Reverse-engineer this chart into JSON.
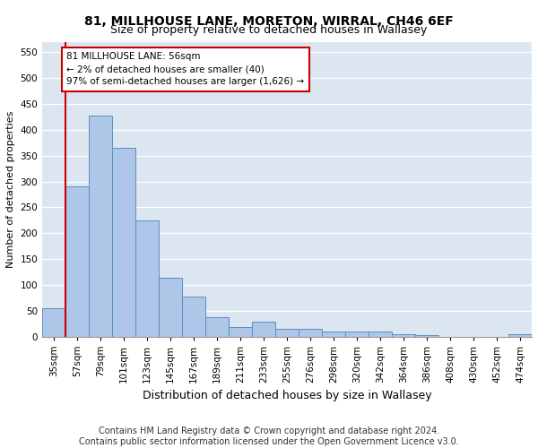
{
  "title": "81, MILLHOUSE LANE, MORETON, WIRRAL, CH46 6EF",
  "subtitle": "Size of property relative to detached houses in Wallasey",
  "xlabel": "Distribution of detached houses by size in Wallasey",
  "ylabel": "Number of detached properties",
  "categories": [
    "35sqm",
    "57sqm",
    "79sqm",
    "101sqm",
    "123sqm",
    "145sqm",
    "167sqm",
    "189sqm",
    "211sqm",
    "233sqm",
    "255sqm",
    "276sqm",
    "298sqm",
    "320sqm",
    "342sqm",
    "364sqm",
    "386sqm",
    "408sqm",
    "430sqm",
    "452sqm",
    "474sqm"
  ],
  "values": [
    55,
    290,
    428,
    365,
    224,
    113,
    77,
    38,
    18,
    28,
    15,
    14,
    10,
    10,
    10,
    5,
    3,
    0,
    0,
    0,
    5
  ],
  "bar_color": "#aec6e8",
  "bar_edge_color": "#5a8fc2",
  "bar_edge_width": 0.7,
  "vline_color": "#cc0000",
  "annotation_text": "81 MILLHOUSE LANE: 56sqm\n← 2% of detached houses are smaller (40)\n97% of semi-detached houses are larger (1,626) →",
  "annotation_box_color": "#ffffff",
  "annotation_box_edge": "#cc0000",
  "ylim": [
    0,
    570
  ],
  "yticks": [
    0,
    50,
    100,
    150,
    200,
    250,
    300,
    350,
    400,
    450,
    500,
    550
  ],
  "background_color": "#dce6f0",
  "footer": "Contains HM Land Registry data © Crown copyright and database right 2024.\nContains public sector information licensed under the Open Government Licence v3.0.",
  "title_fontsize": 10,
  "subtitle_fontsize": 9,
  "footer_fontsize": 7,
  "ylabel_fontsize": 8,
  "xlabel_fontsize": 9,
  "tick_fontsize": 7.5,
  "annot_fontsize": 7.5
}
